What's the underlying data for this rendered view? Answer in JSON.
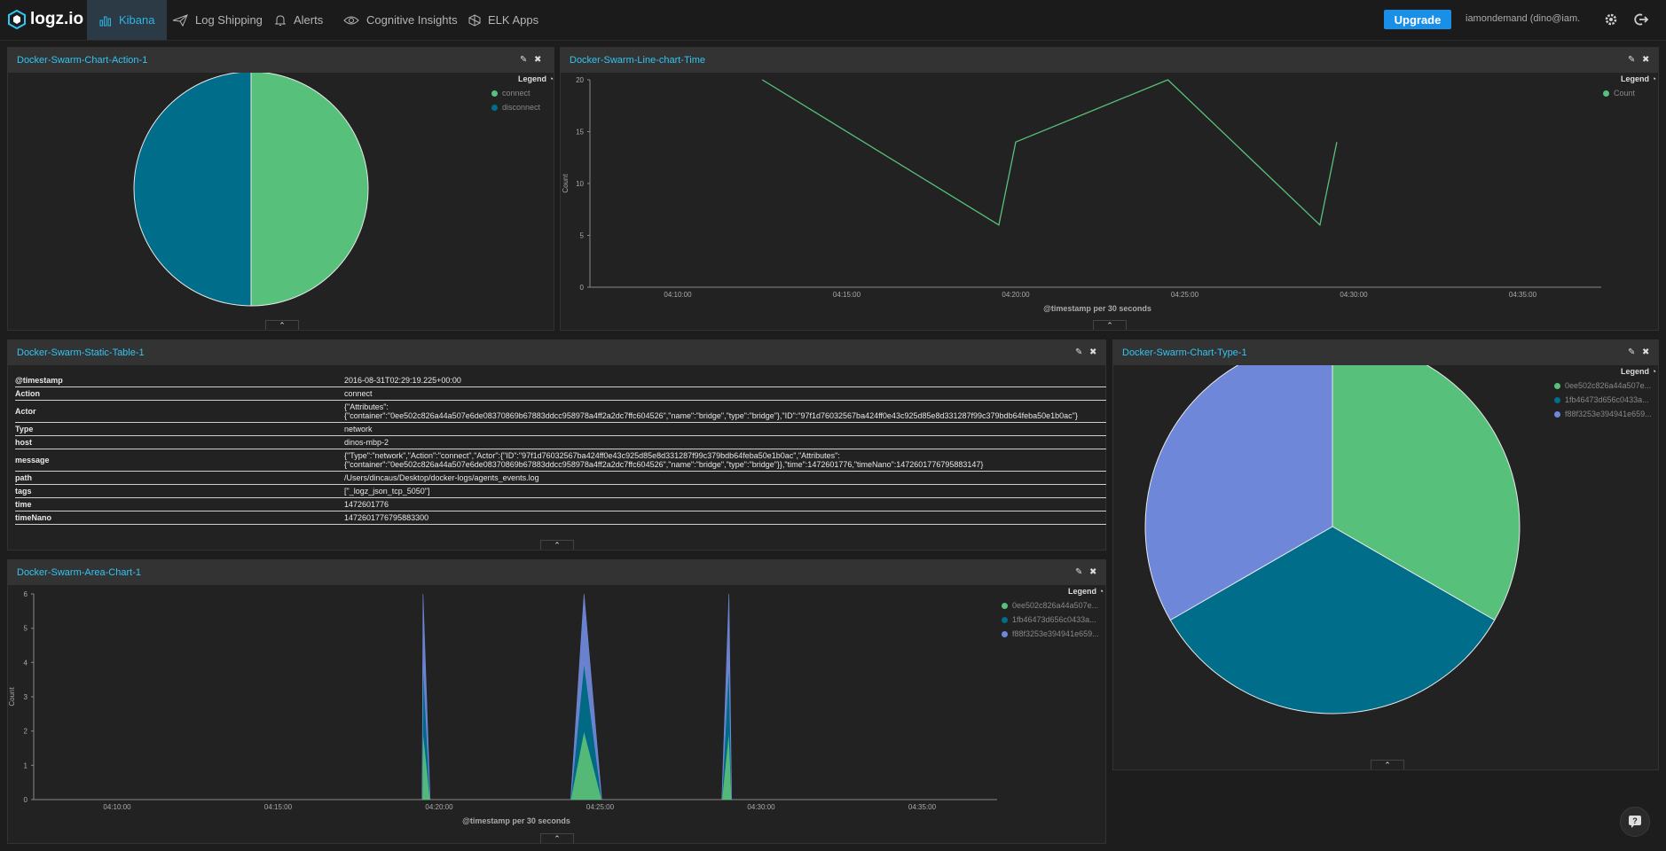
{
  "app": {
    "logo_text": "logz.io",
    "nav": [
      {
        "label": "Kibana",
        "icon": "bar-chart-icon",
        "active": true
      },
      {
        "label": "Log Shipping",
        "icon": "paper-plane-icon"
      },
      {
        "label": "Alerts",
        "icon": "bell-icon"
      },
      {
        "label": "Cognitive Insights",
        "icon": "eye-icon"
      },
      {
        "label": "ELK Apps",
        "icon": "elk-icon"
      }
    ],
    "upgrade_label": "Upgrade",
    "user": "iamondemand (dino@iam...",
    "colors": {
      "accent": "#2fc6f5",
      "upgrade": "#1a8fe8",
      "green": "#57c17b",
      "teal": "#006e8a",
      "purple": "#6f87d8"
    }
  },
  "panels": {
    "action": {
      "title": "Docker-Swarm-Chart-Action-1",
      "legend_title": "Legend",
      "legend": [
        {
          "name": "connect",
          "color": "#57c17b"
        },
        {
          "name": "disconnect",
          "color": "#006e8a"
        }
      ]
    },
    "line": {
      "title": "Docker-Swarm-Line-chart-Time",
      "legend_title": "Legend",
      "legend": [
        {
          "name": "Count",
          "color": "#57c17b"
        }
      ]
    },
    "table": {
      "title": "Docker-Swarm-Static-Table-1",
      "rows": [
        {
          "key": "@timestamp",
          "value": "2016-08-31T02:29:19.225+00:00"
        },
        {
          "key": "Action",
          "value": "connect"
        },
        {
          "key": "Actor",
          "value": "{\"Attributes\":\n{\"container\":\"0ee502c826a44a507e6de08370869b67883ddcc958978a4ff2a2dc7ffc604526\",\"name\":\"bridge\",\"type\":\"bridge\"},\"ID\":\"97f1d76032567ba424ff0e43c925d85e8d331287f99c379bdb64feba50e1b0ac\"}"
        },
        {
          "key": "Type",
          "value": "network"
        },
        {
          "key": "host",
          "value": "dinos-mbp-2"
        },
        {
          "key": "message",
          "value": "{\"Type\":\"network\",\"Action\":\"connect\",\"Actor\":{\"ID\":\"97f1d76032567ba424ff0e43c925d85e8d331287f99c379bdb64feba50e1b0ac\",\"Attributes\":\n{\"container\":\"0ee502c826a44a507e6de08370869b67883ddcc958978a4ff2a2dc7ffc604526\",\"name\":\"bridge\",\"type\":\"bridge\"}},\"time\":1472601776,\"timeNano\":1472601776795883147}"
        },
        {
          "key": "path",
          "value": "/Users/dincaus/Desktop/docker-logs/agents_events.log"
        },
        {
          "key": "tags",
          "value": "[\"_logz_json_tcp_5050\"]"
        },
        {
          "key": "time",
          "value": "1472601776"
        },
        {
          "key": "timeNano",
          "value": "1472601776795883300"
        }
      ]
    },
    "area": {
      "title": "Docker-Swarm-Area-Chart-1",
      "legend_title": "Legend",
      "legend": [
        {
          "name": "0ee502c826a44a507e...",
          "color": "#57c17b"
        },
        {
          "name": "1fb46473d656c0433a...",
          "color": "#006e8a"
        },
        {
          "name": "f88f3253e394941e659...",
          "color": "#6f87d8"
        }
      ]
    },
    "type": {
      "title": "Docker-Swarm-Chart-Type-1",
      "legend_title": "Legend",
      "legend": [
        {
          "name": "0ee502c826a44a507e...",
          "color": "#57c17b"
        },
        {
          "name": "1fb46473d656c0433a...",
          "color": "#006e8a"
        },
        {
          "name": "f88f3253e394941e659...",
          "color": "#6f87d8"
        }
      ]
    }
  },
  "chart_data": [
    {
      "type": "pie",
      "title": "Docker-Swarm-Chart-Action-1",
      "slices": [
        {
          "name": "connect",
          "value": 50,
          "color": "#57c17b"
        },
        {
          "name": "disconnect",
          "value": 50,
          "color": "#006e8a"
        }
      ]
    },
    {
      "type": "line",
      "title": "Docker-Swarm-Line-chart-Time",
      "xlabel": "@timestamp per 30 seconds",
      "ylabel": "Count",
      "ylim": [
        0,
        20
      ],
      "yticks": [
        0,
        5,
        10,
        15,
        20
      ],
      "xticks": [
        "04:10:00",
        "04:15:00",
        "04:20:00",
        "04:25:00",
        "04:30:00",
        "04:35:00"
      ],
      "series": [
        {
          "name": "Count",
          "color": "#57c17b",
          "points": [
            {
              "x": "04:12:30",
              "y": 20
            },
            {
              "x": "04:19:30",
              "y": 6
            },
            {
              "x": "04:20:00",
              "y": 14
            },
            {
              "x": "04:24:30",
              "y": 20
            },
            {
              "x": "04:29:00",
              "y": 6
            },
            {
              "x": "04:29:30",
              "y": 14
            }
          ]
        }
      ]
    },
    {
      "type": "area",
      "title": "Docker-Swarm-Area-Chart-1",
      "xlabel": "@timestamp per 30 seconds",
      "ylabel": "Count",
      "ylim": [
        0,
        6
      ],
      "yticks": [
        0,
        1,
        2,
        3,
        4,
        5,
        6
      ],
      "xticks": [
        "04:10:00",
        "04:15:00",
        "04:20:00",
        "04:25:00",
        "04:30:00",
        "04:35:00"
      ],
      "series": [
        {
          "name": "0ee502c826a44a507e...",
          "color": "#57c17b",
          "points": [
            {
              "x": "04:19:30",
              "y": 2
            },
            {
              "x": "04:24:30",
              "y": 2
            },
            {
              "x": "04:29:00",
              "y": 2
            }
          ]
        },
        {
          "name": "1fb46473d656c0433a...",
          "color": "#006e8a",
          "points": [
            {
              "x": "04:19:30",
              "y": 2
            },
            {
              "x": "04:24:30",
              "y": 2
            },
            {
              "x": "04:29:00",
              "y": 2
            }
          ]
        },
        {
          "name": "f88f3253e394941e659...",
          "color": "#6f87d8",
          "points": [
            {
              "x": "04:19:30",
              "y": 2
            },
            {
              "x": "04:24:30",
              "y": 2
            },
            {
              "x": "04:29:00",
              "y": 2
            }
          ]
        }
      ]
    },
    {
      "type": "pie",
      "title": "Docker-Swarm-Chart-Type-1",
      "slices": [
        {
          "name": "0ee502c826a44a507e...",
          "value": 1,
          "color": "#57c17b"
        },
        {
          "name": "1fb46473d656c0433a...",
          "value": 1,
          "color": "#006e8a"
        },
        {
          "name": "f88f3253e394941e659...",
          "value": 1,
          "color": "#6f87d8"
        }
      ]
    }
  ]
}
